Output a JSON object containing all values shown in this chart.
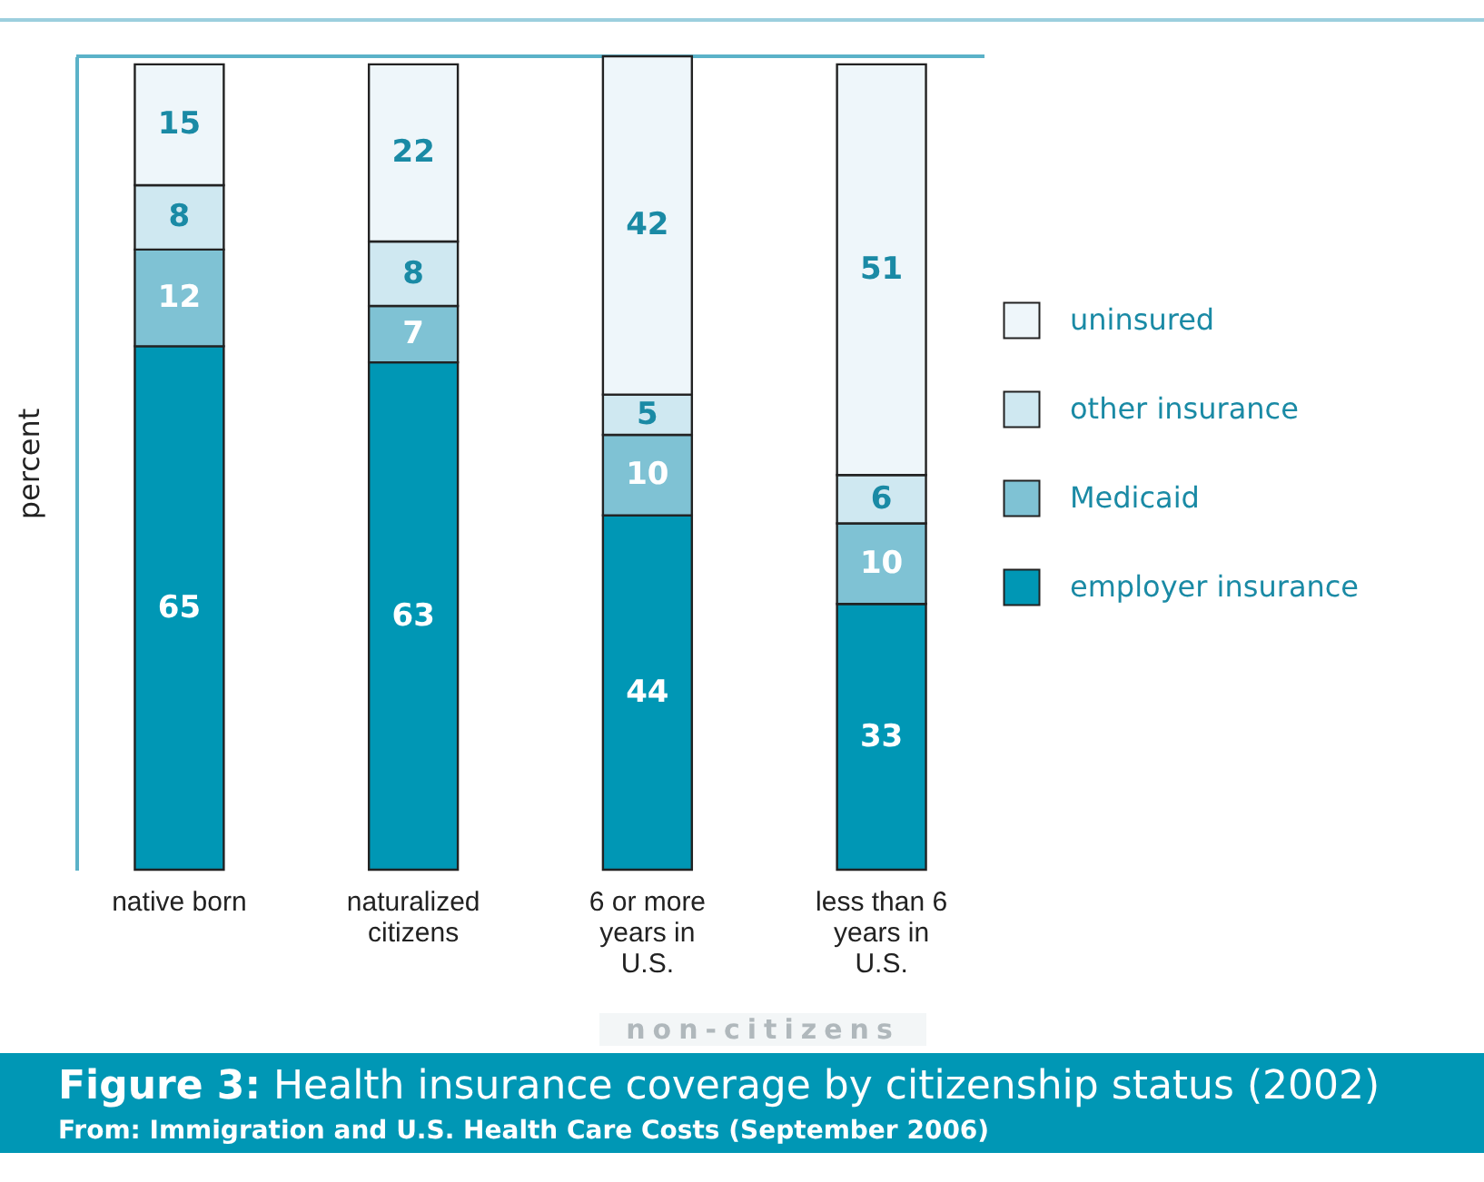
{
  "chart_data": {
    "type": "bar",
    "title": "Figure 3: Health insurance coverage by citizenship status (2002)",
    "subtitle": "From: Immigration and U.S. Health Care Costs (September 2006)",
    "ylabel": "percent",
    "annotations": [
      "non-citizens"
    ],
    "categories": [
      "native born",
      "naturalized citizens",
      "6 or more years in U.S.",
      "less than 6 years in U.S."
    ],
    "stacked": true,
    "data_labels": true,
    "legend": "right",
    "grid": false,
    "series": [
      {
        "name": "employer insurance",
        "color": "#0097b5",
        "values": [
          65,
          63,
          44,
          33
        ]
      },
      {
        "name": "Medicaid",
        "color": "#7fc2d4",
        "values": [
          12,
          7,
          10,
          10
        ]
      },
      {
        "name": "other insurance",
        "color": "#cfe8f1",
        "values": [
          8,
          8,
          5,
          6
        ]
      },
      {
        "name": "uninsured",
        "color": "#eef6fa",
        "values": [
          15,
          22,
          42,
          51
        ]
      }
    ]
  }
}
